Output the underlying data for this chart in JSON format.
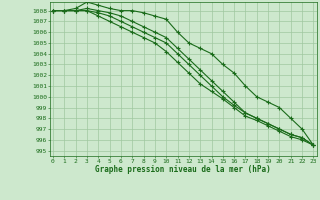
{
  "xlabel": "Graphe pression niveau de la mer (hPa)",
  "ylim": [
    994.5,
    1008.8
  ],
  "xlim": [
    -0.3,
    23.3
  ],
  "x": [
    0,
    1,
    2,
    3,
    4,
    5,
    6,
    7,
    8,
    9,
    10,
    11,
    12,
    13,
    14,
    15,
    16,
    17,
    18,
    19,
    20,
    21,
    22,
    23
  ],
  "line1": [
    1008.0,
    1008.0,
    1008.2,
    1008.8,
    1008.5,
    1008.2,
    1008.0,
    1008.0,
    1007.8,
    1007.5,
    1007.2,
    1006.0,
    1005.0,
    1004.5,
    1004.0,
    1003.0,
    1002.2,
    1001.0,
    1000.0,
    999.5,
    999.0,
    998.0,
    997.0,
    995.5
  ],
  "line2": [
    1008.0,
    1008.0,
    1008.0,
    1008.2,
    1008.0,
    1007.8,
    1007.5,
    1007.0,
    1006.5,
    1006.0,
    1005.5,
    1004.5,
    1003.5,
    1002.5,
    1001.5,
    1000.5,
    999.5,
    998.5,
    998.0,
    997.5,
    997.0,
    996.5,
    996.2,
    995.5
  ],
  "line3": [
    1008.0,
    1008.0,
    1008.0,
    1008.0,
    1007.8,
    1007.5,
    1007.0,
    1006.5,
    1006.0,
    1005.5,
    1005.0,
    1004.0,
    1003.0,
    1002.0,
    1001.0,
    1000.0,
    999.2,
    998.5,
    998.0,
    997.5,
    997.0,
    996.5,
    996.2,
    995.5
  ],
  "line4": [
    1008.0,
    1008.0,
    1008.0,
    1008.0,
    1007.5,
    1007.0,
    1006.5,
    1006.0,
    1005.5,
    1005.0,
    1004.2,
    1003.2,
    1002.2,
    1001.2,
    1000.5,
    999.8,
    999.0,
    998.2,
    997.8,
    997.3,
    996.8,
    996.3,
    996.0,
    995.5
  ],
  "line_color": "#1a6b1a",
  "bg_color": "#cde8cd",
  "grid_color": "#a0c8a0",
  "text_color": "#1a6b1a",
  "yticks": [
    995,
    996,
    997,
    998,
    999,
    1000,
    1001,
    1002,
    1003,
    1004,
    1005,
    1006,
    1007,
    1008
  ],
  "xticks": [
    0,
    1,
    2,
    3,
    4,
    5,
    6,
    7,
    8,
    9,
    10,
    11,
    12,
    13,
    14,
    15,
    16,
    17,
    18,
    19,
    20,
    21,
    22,
    23
  ]
}
